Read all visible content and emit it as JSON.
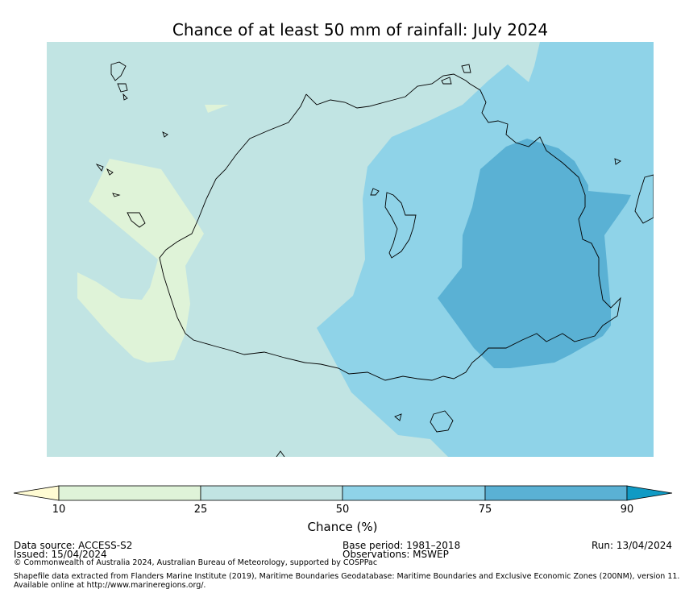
{
  "title": "Chance of at least 50 mm of rainfall: July 2024",
  "map": {
    "colors": {
      "below_10": "#fffbd3",
      "10_25": "#dff3d8",
      "25_50": "#c1e4e3",
      "50_75": "#8fd3e8",
      "75_90": "#5ab1d4",
      "above_90": "#109ac4"
    }
  },
  "legend": {
    "label": "Chance (%)",
    "ticks": [
      "10",
      "25",
      "50",
      "75",
      "90"
    ]
  },
  "footer": {
    "data_source": "Data source: ACCESS-S2",
    "issued": "Issued: 15/04/2024",
    "base_period": "Base period: 1981–2018",
    "observations": "Observations: MSWEP",
    "run": "Run: 13/04/2024",
    "copyright": "© Commonwealth of Australia 2024, Australian Bureau of Meteorology, supported by COSPPac",
    "shapefile_line1": "Shapefile data extracted from Flanders Marine Institute (2019), Maritime Boundaries Geodatabase: Maritime Boundaries and Exclusive Economic Zones (200NM), version 11.",
    "shapefile_line2": "Available online at http://www.marineregions.org/."
  }
}
